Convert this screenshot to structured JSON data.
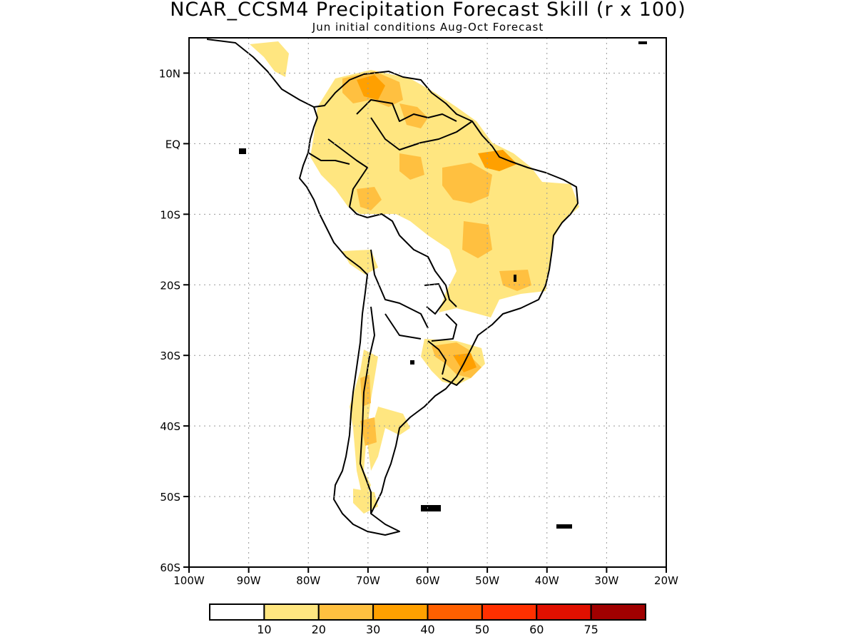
{
  "title": "NCAR_CCSM4 Precipitation Forecast Skill (r x 100)",
  "subtitle": "Jun initial conditions  Aug-Oct Forecast",
  "map": {
    "lon_range": [
      -100,
      -20
    ],
    "lat_range": [
      -60,
      15
    ],
    "lat_ticks": [
      {
        "value": 10,
        "label": "10N"
      },
      {
        "value": 0,
        "label": "EQ"
      },
      {
        "value": -10,
        "label": "10S"
      },
      {
        "value": -20,
        "label": "20S"
      },
      {
        "value": -30,
        "label": "30S"
      },
      {
        "value": -40,
        "label": "40S"
      },
      {
        "value": -50,
        "label": "50S"
      },
      {
        "value": -60,
        "label": "60S"
      }
    ],
    "lon_ticks": [
      {
        "value": -100,
        "label": "100W"
      },
      {
        "value": -90,
        "label": "90W"
      },
      {
        "value": -80,
        "label": "80W"
      },
      {
        "value": -70,
        "label": "70W"
      },
      {
        "value": -60,
        "label": "60W"
      },
      {
        "value": -50,
        "label": "50W"
      },
      {
        "value": -40,
        "label": "40W"
      },
      {
        "value": -30,
        "label": "30W"
      },
      {
        "value": -20,
        "label": "20W"
      }
    ],
    "grid": "dotted"
  },
  "colorbar": {
    "colors": [
      "#ffffff",
      "#ffe680",
      "#ffc040",
      "#ffa000",
      "#ff6000",
      "#ff3000",
      "#e01000",
      "#a00000"
    ],
    "labels": [
      "10",
      "20",
      "30",
      "40",
      "50",
      "60",
      "75"
    ]
  }
}
